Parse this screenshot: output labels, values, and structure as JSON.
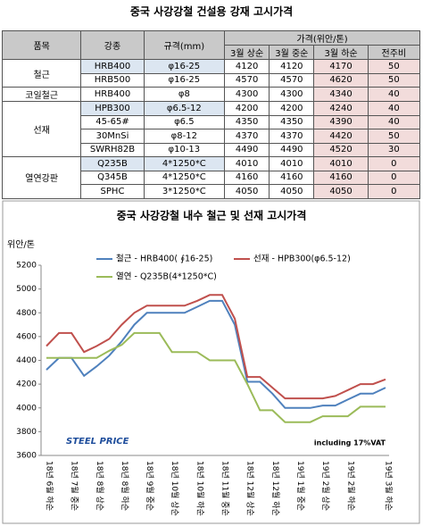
{
  "table": {
    "title": "중국 사강강철 건설용 강재 고시가격",
    "columns": [
      "품목",
      "강종",
      "규격(mm)"
    ],
    "price_header": "가격(위안/톤)",
    "price_columns": [
      "3월 상순",
      "3월 중순",
      "3월 하순",
      "전주비"
    ],
    "groups": [
      {
        "name": "철근",
        "rows": [
          [
            "HRB400",
            "φ16-25",
            4120,
            4120,
            4170,
            50
          ],
          [
            "HRB500",
            "φ16-25",
            4570,
            4570,
            4620,
            50
          ]
        ]
      },
      {
        "name": "코일철근",
        "rows": [
          [
            "HRB400",
            "φ8",
            4300,
            4300,
            4340,
            40
          ]
        ]
      },
      {
        "name": "선재",
        "rows": [
          [
            "HPB300",
            "φ6.5-12",
            4200,
            4200,
            4240,
            40
          ],
          [
            "45-65#",
            "φ6.5",
            4350,
            4350,
            4390,
            40
          ],
          [
            "30MnSi",
            "φ8-12",
            4370,
            4370,
            4420,
            50
          ],
          [
            "SWRH82B",
            "φ10-13",
            4490,
            4490,
            4520,
            30
          ]
        ]
      },
      {
        "name": "열연강판",
        "rows": [
          [
            "Q235B",
            "4*1250*C",
            4010,
            4010,
            4010,
            0
          ],
          [
            "Q345B",
            "4*1250*C",
            4160,
            4160,
            4160,
            0
          ],
          [
            "SPHC",
            "3*1250*C",
            4050,
            4050,
            4050,
            0
          ]
        ]
      }
    ]
  },
  "chart_data": {
    "type": "line",
    "title": "중국 사강강철 내수 철근 및 선재 고시가격",
    "y_label": "위안/톤",
    "annotations": [
      "STEEL PRICE",
      "including 17%VAT"
    ],
    "categories": [
      "18년 6월 하순",
      null,
      "18년 7월 중순",
      null,
      "18년 8월 상순",
      null,
      "18년 8월 하순",
      null,
      "18년 9월 중순",
      null,
      "18년 10월 상순",
      null,
      "18년 10월 하순",
      null,
      "18년 11월 중순",
      null,
      "18년 12월 상순",
      null,
      "18년 12월 하순",
      null,
      "19년 1월 중순",
      null,
      "19년 2월 상순",
      null,
      "19년 2월 하순",
      null,
      null,
      "19년 3월 하순"
    ],
    "series": [
      {
        "name": "철근 - HRB400( ∮16-25)",
        "color": "#4f81bd",
        "values": [
          4320,
          4420,
          4420,
          4270,
          4350,
          4440,
          4560,
          4700,
          4800,
          4800,
          4800,
          4800,
          4850,
          4900,
          4900,
          4700,
          4220,
          4220,
          4120,
          4000,
          4000,
          4000,
          4020,
          4020,
          4070,
          4120,
          4120,
          4170
        ]
      },
      {
        "name": "선재 - HPB300(φ6.5-12)",
        "color": "#c0504d",
        "values": [
          4520,
          4630,
          4630,
          4470,
          4520,
          4580,
          4700,
          4800,
          4860,
          4860,
          4860,
          4860,
          4900,
          4950,
          4950,
          4750,
          4260,
          4260,
          4170,
          4080,
          4080,
          4080,
          4080,
          4100,
          4150,
          4200,
          4200,
          4240
        ]
      },
      {
        "name": "열연 - Q235B(4*1250*C)",
        "color": "#9bbb59",
        "values": [
          4420,
          4420,
          4420,
          4420,
          4420,
          4480,
          4530,
          4630,
          4630,
          4630,
          4470,
          4470,
          4470,
          4400,
          4400,
          4400,
          4200,
          3980,
          3980,
          3880,
          3880,
          3880,
          3930,
          3930,
          3930,
          4010,
          4010,
          4010
        ]
      }
    ],
    "ylim": [
      3600,
      5200
    ],
    "yticks": [
      3600,
      3800,
      4000,
      4200,
      4400,
      4600,
      4800,
      5000,
      5200
    ],
    "grid": false
  }
}
